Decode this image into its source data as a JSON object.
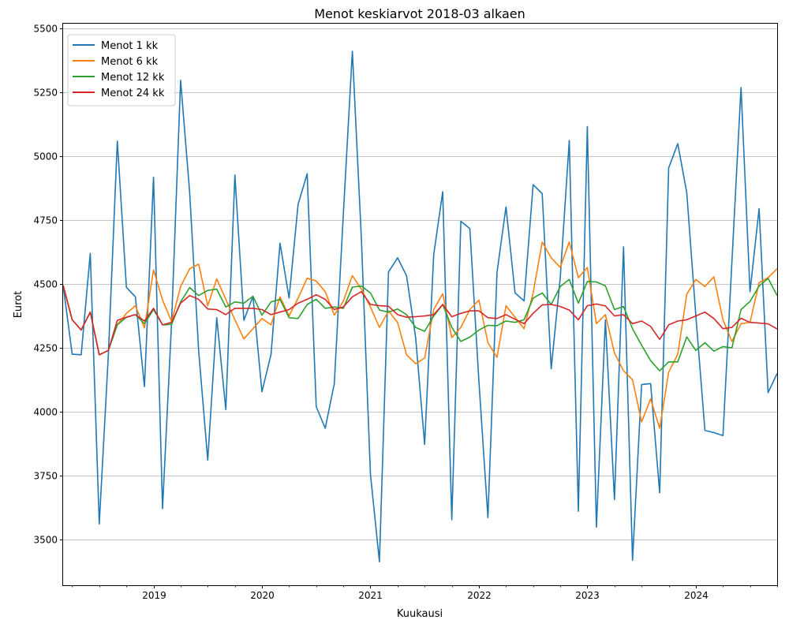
{
  "chart_data": {
    "type": "line",
    "title": "Menot keskiarvot 2018-03 alkaen",
    "xlabel": "Kuukausi",
    "ylabel": "Eurot",
    "x_start": "2018-03",
    "x_end": "2024-10",
    "xlim": [
      "2018-03",
      "2024-10"
    ],
    "ylim": [
      3320,
      5520
    ],
    "x_ticks": [
      {
        "value": "2019-01",
        "label": "2019"
      },
      {
        "value": "2020-01",
        "label": "2020"
      },
      {
        "value": "2021-01",
        "label": "2021"
      },
      {
        "value": "2022-01",
        "label": "2022"
      },
      {
        "value": "2023-01",
        "label": "2023"
      },
      {
        "value": "2024-01",
        "label": "2024"
      }
    ],
    "y_ticks": [
      3500,
      3750,
      4000,
      4250,
      4500,
      4750,
      5000,
      5250,
      5500
    ],
    "grid": "horizontal",
    "legend_position": "top-left",
    "series": [
      {
        "name": "Menot 1 kk",
        "color": "#1f77b4",
        "values": [
          4495,
          4225,
          4223,
          4620,
          3560,
          4220,
          5060,
          4487,
          4450,
          4098,
          4918,
          3620,
          4352,
          5298,
          4858,
          4238,
          3810,
          4368,
          4008,
          4927,
          4358,
          4452,
          4078,
          4224,
          4660,
          4445,
          4812,
          4932,
          4020,
          3935,
          4110,
          4770,
          5412,
          4680,
          3755,
          3412,
          4547,
          4603,
          4532,
          4290,
          3872,
          4615,
          4862,
          3577,
          4746,
          4717,
          4118,
          3585,
          4545,
          4802,
          4465,
          4434,
          4889,
          4854,
          4168,
          4526,
          5062,
          3610,
          5117,
          3548,
          4359,
          3656,
          4646,
          3418,
          4106,
          4110,
          3682,
          4955,
          5050,
          4858,
          4378,
          3927,
          3918,
          3906,
          4590,
          5270,
          4470,
          4795,
          4075,
          4150
        ]
      },
      {
        "name": "Menot 6 kk",
        "color": "#ff7f0e",
        "values": [
          4495,
          4360,
          4320,
          4390,
          4223,
          4240,
          4340,
          4385,
          4415,
          4328,
          4555,
          4438,
          4353,
          4490,
          4560,
          4578,
          4415,
          4520,
          4440,
          4360,
          4285,
          4325,
          4365,
          4340,
          4450,
          4375,
          4445,
          4523,
          4512,
          4470,
          4378,
          4432,
          4533,
          4480,
          4410,
          4330,
          4395,
          4350,
          4223,
          4188,
          4210,
          4400,
          4462,
          4290,
          4330,
          4400,
          4437,
          4270,
          4213,
          4415,
          4370,
          4325,
          4465,
          4664,
          4603,
          4565,
          4665,
          4525,
          4565,
          4345,
          4380,
          4230,
          4160,
          4125,
          3960,
          4050,
          3935,
          4155,
          4225,
          4460,
          4518,
          4490,
          4528,
          4360,
          4275,
          4345,
          4350,
          4505,
          4525,
          4560
        ]
      },
      {
        "name": "Menot 12 kk",
        "color": "#2ca02c",
        "values": [
          4495,
          4360,
          4320,
          4390,
          4223,
          4240,
          4340,
          4370,
          4380,
          4345,
          4400,
          4340,
          4342,
          4430,
          4486,
          4455,
          4475,
          4480,
          4410,
          4430,
          4425,
          4452,
          4378,
          4430,
          4440,
          4368,
          4365,
          4420,
          4440,
          4405,
          4410,
          4405,
          4488,
          4492,
          4465,
          4398,
          4390,
          4402,
          4380,
          4330,
          4315,
          4375,
          4420,
          4330,
          4275,
          4292,
          4320,
          4338,
          4337,
          4355,
          4350,
          4360,
          4445,
          4465,
          4420,
          4490,
          4518,
          4425,
          4510,
          4508,
          4493,
          4400,
          4412,
          4325,
          4260,
          4200,
          4160,
          4195,
          4195,
          4293,
          4240,
          4270,
          4237,
          4255,
          4250,
          4400,
          4432,
          4492,
          4522,
          4455
        ]
      },
      {
        "name": "Menot 24 kk",
        "color": "#d62728",
        "values": [
          4495,
          4360,
          4320,
          4390,
          4223,
          4240,
          4358,
          4370,
          4380,
          4355,
          4405,
          4340,
          4350,
          4425,
          4455,
          4440,
          4402,
          4400,
          4380,
          4405,
          4405,
          4405,
          4400,
          4380,
          4390,
          4400,
          4425,
          4440,
          4458,
          4440,
          4400,
          4410,
          4450,
          4470,
          4420,
          4415,
          4413,
          4380,
          4370,
          4372,
          4375,
          4380,
          4420,
          4372,
          4385,
          4395,
          4395,
          4368,
          4365,
          4380,
          4362,
          4345,
          4385,
          4418,
          4420,
          4412,
          4398,
          4360,
          4415,
          4422,
          4414,
          4375,
          4380,
          4345,
          4355,
          4334,
          4283,
          4340,
          4355,
          4360,
          4375,
          4390,
          4365,
          4325,
          4330,
          4366,
          4350,
          4347,
          4344,
          4324
        ]
      }
    ]
  }
}
